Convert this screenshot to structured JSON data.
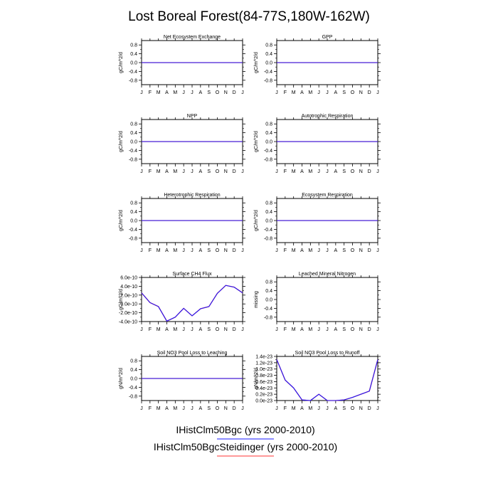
{
  "title": "Lost Boreal Forest(84-77S,180W-162W)",
  "months": [
    "J",
    "F",
    "M",
    "A",
    "M",
    "J",
    "J",
    "A",
    "S",
    "O",
    "N",
    "D",
    "J"
  ],
  "legend": [
    {
      "label": "IHistClm50Bgc (yrs 2000-2010)",
      "color": "#1a1aff"
    },
    {
      "label": "IHistClm50BgcSteidinger (yrs 2000-2010)",
      "color": "#ff3333"
    }
  ],
  "chart_data": [
    {
      "type": "line",
      "title": "Net Ecosystem Exchange",
      "ylabel": "gC/m^2/d",
      "ylim": [
        -1,
        1
      ],
      "yticks": [
        "0.8",
        "0.4",
        "0.0",
        "-0.4",
        "-0.8"
      ],
      "ytick_values": [
        0.8,
        0.4,
        0,
        -0.4,
        -0.8
      ],
      "series": [
        {
          "values": [
            0,
            0,
            0,
            0,
            0,
            0,
            0,
            0,
            0,
            0,
            0,
            0,
            0
          ]
        }
      ]
    },
    {
      "type": "line",
      "title": "GPP",
      "ylabel": "gC/m^2/d",
      "ylim": [
        -1,
        1
      ],
      "yticks": [
        "0.8",
        "0.4",
        "0.0",
        "-0.4",
        "-0.8"
      ],
      "ytick_values": [
        0.8,
        0.4,
        0,
        -0.4,
        -0.8
      ],
      "series": [
        {
          "values": [
            0,
            0,
            0,
            0,
            0,
            0,
            0,
            0,
            0,
            0,
            0,
            0,
            0
          ]
        }
      ]
    },
    {
      "type": "line",
      "title": "NPP",
      "ylabel": "gC/m^2/d",
      "ylim": [
        -1,
        1
      ],
      "yticks": [
        "0.8",
        "0.4",
        "0.0",
        "-0.4",
        "-0.8"
      ],
      "ytick_values": [
        0.8,
        0.4,
        0,
        -0.4,
        -0.8
      ],
      "series": [
        {
          "values": [
            0,
            0,
            0,
            0,
            0,
            0,
            0,
            0,
            0,
            0,
            0,
            0,
            0
          ]
        }
      ]
    },
    {
      "type": "line",
      "title": "Autotrophic Respiration",
      "ylabel": "gC/m^2/d",
      "ylim": [
        -1,
        1
      ],
      "yticks": [
        "0.8",
        "0.4",
        "0.0",
        "-0.4",
        "-0.8"
      ],
      "ytick_values": [
        0.8,
        0.4,
        0,
        -0.4,
        -0.8
      ],
      "series": [
        {
          "values": [
            0,
            0,
            0,
            0,
            0,
            0,
            0,
            0,
            0,
            0,
            0,
            0,
            0
          ]
        }
      ]
    },
    {
      "type": "line",
      "title": "Heterotrophic Respiration",
      "ylabel": "gC/m^2/d",
      "ylim": [
        -1,
        1
      ],
      "yticks": [
        "0.8",
        "0.4",
        "0.0",
        "-0.4",
        "-0.8"
      ],
      "ytick_values": [
        0.8,
        0.4,
        0,
        -0.4,
        -0.8
      ],
      "series": [
        {
          "values": [
            0,
            0,
            0,
            0,
            0,
            0,
            0,
            0,
            0,
            0,
            0,
            0,
            0
          ]
        }
      ]
    },
    {
      "type": "line",
      "title": "Ecosystem Respiration",
      "ylabel": "gC/m^2/d",
      "ylim": [
        -1,
        1
      ],
      "yticks": [
        "0.8",
        "0.4",
        "0.0",
        "-0.4",
        "-0.8"
      ],
      "ytick_values": [
        0.8,
        0.4,
        0,
        -0.4,
        -0.8
      ],
      "series": [
        {
          "values": [
            0,
            0,
            0,
            0,
            0,
            0,
            0,
            0,
            0,
            0,
            0,
            0,
            0
          ]
        }
      ]
    },
    {
      "type": "line",
      "title": "Surface CH4 Flux",
      "ylabel": "gC/m^2/d",
      "ylim": [
        -4e-10,
        6e-10
      ],
      "yticks": [
        "6.0e-10",
        "4.0e-10",
        "2.0e-10",
        "0.0e-10",
        "-2.0e-10",
        "-4.0e-10"
      ],
      "ytick_values": [
        6e-10,
        4e-10,
        2e-10,
        0,
        -2e-10,
        -4e-10
      ],
      "series": [
        {
          "values": [
            2.5e-10,
            3e-11,
            -6e-11,
            -3.9e-10,
            -3e-10,
            -1e-10,
            -2.7e-10,
            -1.1e-10,
            -6e-11,
            2.4e-10,
            4.2e-10,
            3.8e-10,
            2.5e-10
          ]
        }
      ]
    },
    {
      "type": "line",
      "title": "Leached Mineral Nitrogen",
      "ylabel": "missing",
      "ylim": [
        -1,
        1
      ],
      "yticks": [
        "0.8",
        "0.4",
        "0.0",
        "-0.4",
        "-0.8"
      ],
      "ytick_values": [
        0.8,
        0.4,
        0,
        -0.4,
        -0.8
      ],
      "series": []
    },
    {
      "type": "line",
      "title": "Soil NO3 Pool Loss to Leaching",
      "ylabel": "gN/m^2/d",
      "ylim": [
        -1,
        1
      ],
      "yticks": [
        "0.8",
        "0.4",
        "0.0",
        "-0.4",
        "-0.8"
      ],
      "ytick_values": [
        0.8,
        0.4,
        0,
        -0.4,
        -0.8
      ],
      "series": [
        {
          "values": [
            0,
            0,
            0,
            0,
            0,
            0,
            0,
            0,
            0,
            0,
            0,
            0,
            0
          ]
        }
      ]
    },
    {
      "type": "line",
      "title": "Soil NO3 Pool Loss to Runoff",
      "ylabel": "gN/m^2/d",
      "ylim": [
        0,
        1.4e-23
      ],
      "yticks": [
        "1.4e-23",
        "1.2e-23",
        "1.0e-23",
        "0.8e-23",
        "0.6e-23",
        "0.4e-23",
        "0.2e-23",
        "0.0e-23"
      ],
      "ytick_values": [
        1.4e-23,
        1.2e-23,
        1e-23,
        8e-24,
        6e-24,
        4e-24,
        2e-24,
        0
      ],
      "series": [
        {
          "values": [
            1.3e-23,
            6.5e-24,
            4e-24,
            2e-25,
            0.0,
            2e-24,
            0.0,
            0.0,
            2e-25,
            1e-24,
            2e-24,
            3e-24,
            1.3e-23
          ]
        }
      ]
    }
  ]
}
